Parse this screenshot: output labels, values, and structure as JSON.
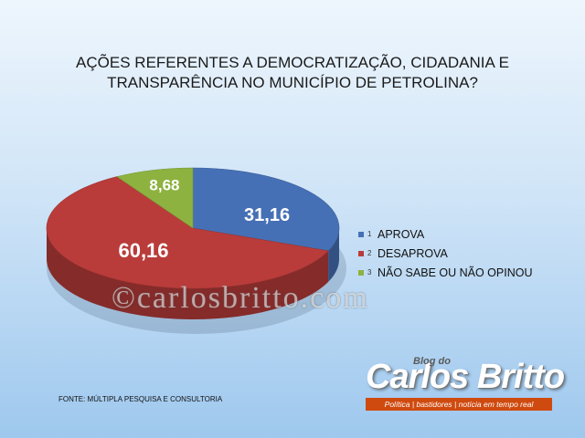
{
  "title_lines": [
    "AÇÕES REFERENTES A DEMOCRATIZAÇÃO, CIDADANIA E",
    "TRANSPARÊNCIA NO MUNICÍPIO DE PETROLINA?"
  ],
  "chart_data": {
    "type": "pie",
    "title": "AÇÕES REFERENTES A DEMOCRATIZAÇÃO, CIDADANIA E TRANSPARÊNCIA NO MUNICÍPIO DE PETROLINA?",
    "categories": [
      "APROVA",
      "DESAPROVA",
      "NÃO SABE OU NÃO OPINOU"
    ],
    "legend_numbers": [
      "1",
      "2",
      "3"
    ],
    "values": [
      31.16,
      60.16,
      8.68
    ],
    "value_labels": [
      "31,16",
      "60,16",
      "8,68"
    ],
    "colors": [
      "#4670b5",
      "#b93c3a",
      "#8db240"
    ],
    "legend_position": "right",
    "style": "3d"
  },
  "watermark": "©carlosbritto.com",
  "source": "FONTE: MÚLTIPLA PESQUISA E CONSULTORIA",
  "logo": {
    "small": "Blog do",
    "main": "Carlos Britto",
    "tagline": "Política | bastidores | notícia em tempo real"
  }
}
